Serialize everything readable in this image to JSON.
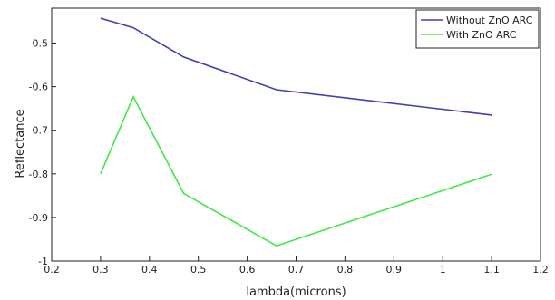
{
  "chart_data": {
    "type": "line",
    "title": "",
    "xlabel": "lambda(microns)",
    "ylabel": "Reflectance",
    "xlim": [
      0.2,
      1.2
    ],
    "ylim": [
      -1.0,
      -0.42
    ],
    "x_ticks": [
      0.2,
      0.3,
      0.4,
      0.5,
      0.6,
      0.7,
      0.8,
      0.9,
      1.0,
      1.1,
      1.2
    ],
    "x_tick_labels": [
      "0.2",
      "0.3",
      "0.4",
      "0.5",
      "0.6",
      "0.7",
      "0.8",
      "0.9",
      "1",
      "1.1",
      "1.2"
    ],
    "y_ticks": [
      -1.0,
      -0.9,
      -0.8,
      -0.7,
      -0.6,
      -0.5
    ],
    "y_tick_labels": [
      "-1",
      "-0.9",
      "-0.8",
      "-0.7",
      "-0.6",
      "-0.5"
    ],
    "grid": false,
    "legend_position": "top-right",
    "series": [
      {
        "name": "Without ZnO ARC",
        "color": "#3f3fb0",
        "x": [
          0.3,
          0.367,
          0.47,
          0.66,
          1.1
        ],
        "y": [
          -0.443,
          -0.465,
          -0.532,
          -0.607,
          -0.665
        ]
      },
      {
        "name": "With ZnO ARC",
        "color": "#44e844",
        "x": [
          0.3,
          0.367,
          0.47,
          0.66,
          1.1
        ],
        "y": [
          -0.8,
          -0.623,
          -0.845,
          -0.965,
          -0.801
        ]
      }
    ]
  }
}
